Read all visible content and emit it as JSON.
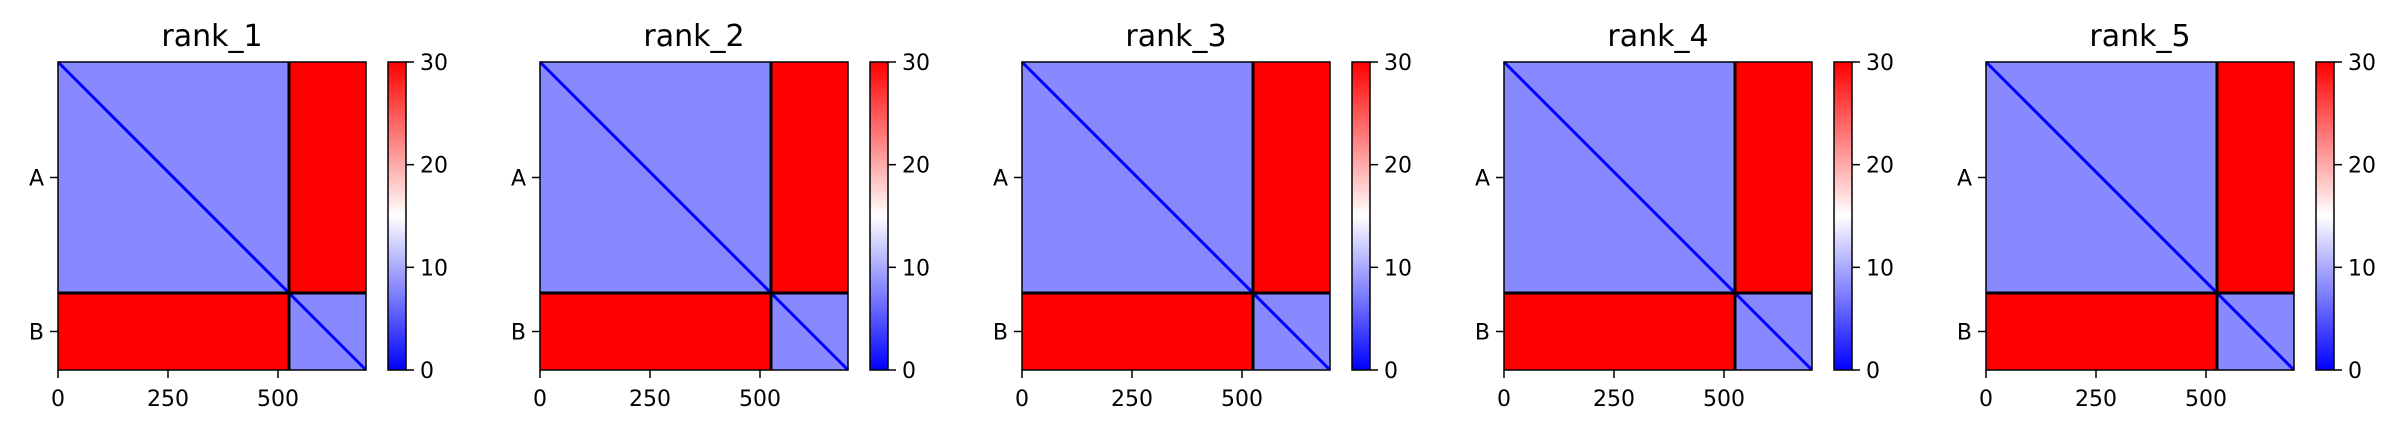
{
  "chart_data": [
    {
      "type": "heatmap",
      "title": "rank_1",
      "xlabel": "",
      "ylabel": "",
      "xlim": [
        0,
        700
      ],
      "x_ticks": [
        0,
        250,
        500
      ],
      "y_ticks": [
        "A",
        "B"
      ],
      "chains": [
        {
          "name": "A",
          "start": 0,
          "end": 525
        },
        {
          "name": "B",
          "start": 525,
          "end": 700
        }
      ],
      "colorbar": {
        "min": 0,
        "max": 30,
        "ticks": [
          0,
          10,
          20,
          30
        ],
        "colormap": "bwr"
      },
      "blocks": {
        "A-A": 8,
        "A-B": 30,
        "B-A": 30,
        "B-B": 8
      },
      "diagonal_value": 0
    },
    {
      "type": "heatmap",
      "title": "rank_2",
      "xlabel": "",
      "ylabel": "",
      "xlim": [
        0,
        700
      ],
      "x_ticks": [
        0,
        250,
        500
      ],
      "y_ticks": [
        "A",
        "B"
      ],
      "chains": [
        {
          "name": "A",
          "start": 0,
          "end": 525
        },
        {
          "name": "B",
          "start": 525,
          "end": 700
        }
      ],
      "colorbar": {
        "min": 0,
        "max": 30,
        "ticks": [
          0,
          10,
          20,
          30
        ],
        "colormap": "bwr"
      },
      "blocks": {
        "A-A": 8,
        "A-B": 30,
        "B-A": 30,
        "B-B": 8
      },
      "diagonal_value": 0
    },
    {
      "type": "heatmap",
      "title": "rank_3",
      "xlabel": "",
      "ylabel": "",
      "xlim": [
        0,
        700
      ],
      "x_ticks": [
        0,
        250,
        500
      ],
      "y_ticks": [
        "A",
        "B"
      ],
      "chains": [
        {
          "name": "A",
          "start": 0,
          "end": 525
        },
        {
          "name": "B",
          "start": 525,
          "end": 700
        }
      ],
      "colorbar": {
        "min": 0,
        "max": 30,
        "ticks": [
          0,
          10,
          20,
          30
        ],
        "colormap": "bwr"
      },
      "blocks": {
        "A-A": 8,
        "A-B": 30,
        "B-A": 30,
        "B-B": 8
      },
      "diagonal_value": 0
    },
    {
      "type": "heatmap",
      "title": "rank_4",
      "xlabel": "",
      "ylabel": "",
      "xlim": [
        0,
        700
      ],
      "x_ticks": [
        0,
        250,
        500
      ],
      "y_ticks": [
        "A",
        "B"
      ],
      "chains": [
        {
          "name": "A",
          "start": 0,
          "end": 525
        },
        {
          "name": "B",
          "start": 525,
          "end": 700
        }
      ],
      "colorbar": {
        "min": 0,
        "max": 30,
        "ticks": [
          0,
          10,
          20,
          30
        ],
        "colormap": "bwr"
      },
      "blocks": {
        "A-A": 8,
        "A-B": 30,
        "B-A": 30,
        "B-B": 8
      },
      "diagonal_value": 0
    },
    {
      "type": "heatmap",
      "title": "rank_5",
      "xlabel": "",
      "ylabel": "",
      "xlim": [
        0,
        700
      ],
      "x_ticks": [
        0,
        250,
        500
      ],
      "y_ticks": [
        "A",
        "B"
      ],
      "chains": [
        {
          "name": "A",
          "start": 0,
          "end": 525
        },
        {
          "name": "B",
          "start": 525,
          "end": 700
        }
      ],
      "colorbar": {
        "min": 0,
        "max": 30,
        "ticks": [
          0,
          10,
          20,
          30
        ],
        "colormap": "bwr"
      },
      "blocks": {
        "A-A": 8,
        "A-B": 30,
        "B-A": 30,
        "B-B": 8
      },
      "diagonal_value": 0
    }
  ]
}
